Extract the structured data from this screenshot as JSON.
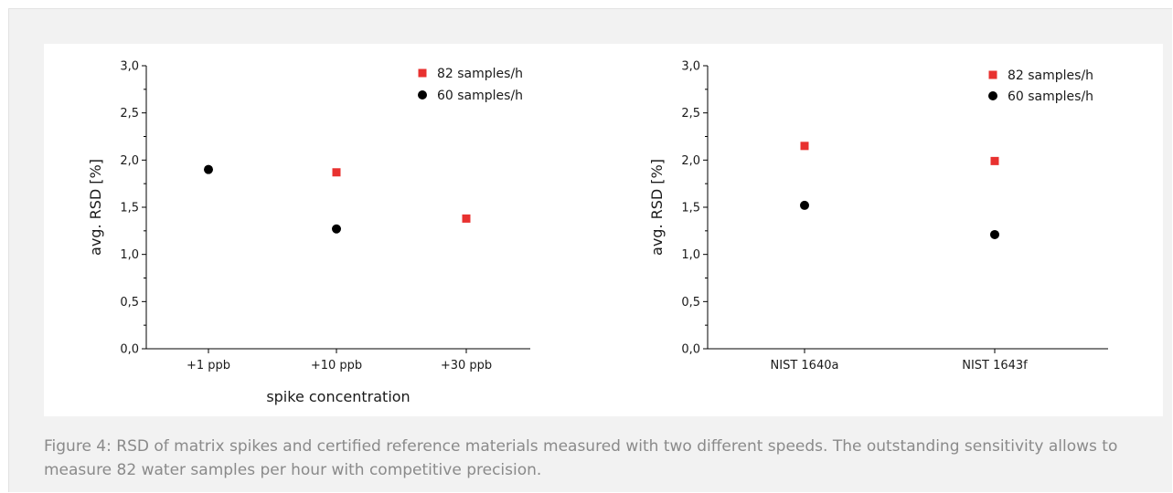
{
  "caption": "Figure 4: RSD of matrix spikes and certified reference materials measured with two different speeds. The outstanding sensitivity allows to measure 82 water samples per hour with competitive precision.",
  "colors": {
    "series_82": "#e8312f",
    "series_60": "#000000"
  },
  "chart_data": [
    {
      "type": "scatter",
      "categories": [
        "+1 ppb",
        "+10 ppb",
        "+30 ppb"
      ],
      "xlabel": "spike concentration",
      "ylabel": "avg. RSD [%]",
      "ylim": [
        0,
        3
      ],
      "yticks": [
        "0,0",
        "0,5",
        "1,0",
        "1,5",
        "2,0",
        "2,5",
        "3,0"
      ],
      "grid": false,
      "legend_position": "top-right",
      "series": [
        {
          "name": "82 samples/h",
          "marker": "square",
          "values": [
            null,
            1.87,
            1.38
          ]
        },
        {
          "name": "60 samples/h",
          "marker": "circle",
          "values": [
            1.9,
            1.27,
            null
          ]
        }
      ]
    },
    {
      "type": "scatter",
      "categories": [
        "NIST 1640a",
        "NIST 1643f"
      ],
      "xlabel": "",
      "ylabel": "avg. RSD [%]",
      "ylim": [
        0,
        3
      ],
      "yticks": [
        "0,0",
        "0,5",
        "1,0",
        "1,5",
        "2,0",
        "2,5",
        "3,0"
      ],
      "grid": false,
      "legend_position": "top-right",
      "series": [
        {
          "name": "82 samples/h",
          "marker": "square",
          "values": [
            2.15,
            1.99
          ]
        },
        {
          "name": "60 samples/h",
          "marker": "circle",
          "values": [
            1.52,
            1.21
          ]
        }
      ]
    }
  ]
}
